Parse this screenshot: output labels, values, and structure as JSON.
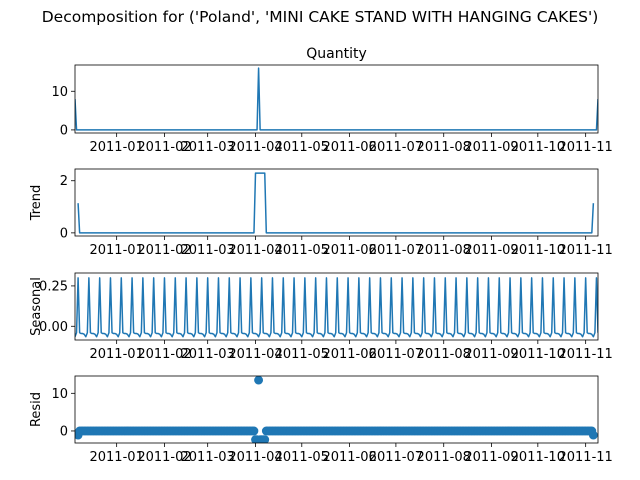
{
  "figure": {
    "title": "Decomposition for ('Poland', 'MINI CAKE STAND WITH HANGING CAKES')"
  },
  "chart_data": [
    {
      "type": "line",
      "title": "Quantity",
      "ylabel": "",
      "xlim": [
        "2010-12-05",
        "2011-11-09"
      ],
      "ylim": [
        -0.8,
        16.8
      ],
      "yticks": [
        0,
        10
      ],
      "x_ticks": [
        "2011-01",
        "2011-02",
        "2011-03",
        "2011-04",
        "2011-05",
        "2011-06",
        "2011-07",
        "2011-08",
        "2011-09",
        "2011-10",
        "2011-11"
      ],
      "points": [
        {
          "x": "2010-12-05",
          "y": 8
        },
        {
          "x": "2010-12-06",
          "y": 0
        },
        {
          "x": "2011-04-02",
          "y": 0
        },
        {
          "x": "2011-04-03",
          "y": 16
        },
        {
          "x": "2011-04-04",
          "y": 0
        },
        {
          "x": "2011-11-08",
          "y": 0
        },
        {
          "x": "2011-11-09",
          "y": 8
        }
      ]
    },
    {
      "type": "line",
      "title": "",
      "ylabel": "Trend",
      "xlim": [
        "2010-12-05",
        "2011-11-09"
      ],
      "ylim": [
        -0.12,
        2.45
      ],
      "yticks": [
        0,
        2
      ],
      "x_ticks": [
        "2011-01",
        "2011-02",
        "2011-03",
        "2011-04",
        "2011-05",
        "2011-06",
        "2011-07",
        "2011-08",
        "2011-09",
        "2011-10",
        "2011-11"
      ],
      "points": [
        {
          "x": "2010-12-07",
          "y": 1.14
        },
        {
          "x": "2010-12-08",
          "y": 0
        },
        {
          "x": "2011-03-31",
          "y": 0
        },
        {
          "x": "2011-04-01",
          "y": 2.29
        },
        {
          "x": "2011-04-07",
          "y": 2.29
        },
        {
          "x": "2011-04-08",
          "y": 0
        },
        {
          "x": "2011-11-05",
          "y": 0
        },
        {
          "x": "2011-11-06",
          "y": 1.14
        }
      ]
    },
    {
      "type": "line",
      "title": "",
      "ylabel": "Seasonal",
      "xlim": [
        "2010-12-05",
        "2011-11-09"
      ],
      "ylim": [
        -0.085,
        0.33
      ],
      "yticks": [
        0.0,
        0.25
      ],
      "ytick_labels": [
        "0.00",
        "0.25"
      ],
      "x_ticks": [
        "2011-01",
        "2011-02",
        "2011-03",
        "2011-04",
        "2011-05",
        "2011-06",
        "2011-07",
        "2011-08",
        "2011-09",
        "2011-10",
        "2011-11"
      ],
      "period_days": 7,
      "weekly_pattern": [
        -0.065,
        -0.04,
        0.3,
        -0.04,
        -0.045,
        -0.045,
        -0.05
      ]
    },
    {
      "type": "scatter",
      "title": "",
      "ylabel": "Resid",
      "xlim": [
        "2010-12-05",
        "2011-11-09"
      ],
      "ylim": [
        -3.2,
        14.6
      ],
      "yticks": [
        0,
        10
      ],
      "x_ticks": [
        "2011-01",
        "2011-02",
        "2011-03",
        "2011-04",
        "2011-05",
        "2011-06",
        "2011-07",
        "2011-08",
        "2011-09",
        "2011-10",
        "2011-11"
      ],
      "baseline": 0,
      "baseline_start": "2010-12-08",
      "baseline_end": "2011-11-05",
      "special_points": [
        {
          "x": "2010-12-07",
          "y": -1.1
        },
        {
          "x": "2011-04-01",
          "y": -2.3
        },
        {
          "x": "2011-04-02",
          "y": -2.3
        },
        {
          "x": "2011-04-03",
          "y": 13.5
        },
        {
          "x": "2011-04-04",
          "y": -2.3
        },
        {
          "x": "2011-04-05",
          "y": -2.3
        },
        {
          "x": "2011-04-06",
          "y": -2.3
        },
        {
          "x": "2011-04-07",
          "y": -2.3
        },
        {
          "x": "2011-11-06",
          "y": -1.1
        }
      ]
    }
  ],
  "colors": {
    "line": "#1f77b4",
    "axes": "#000000",
    "background": "#ffffff"
  }
}
